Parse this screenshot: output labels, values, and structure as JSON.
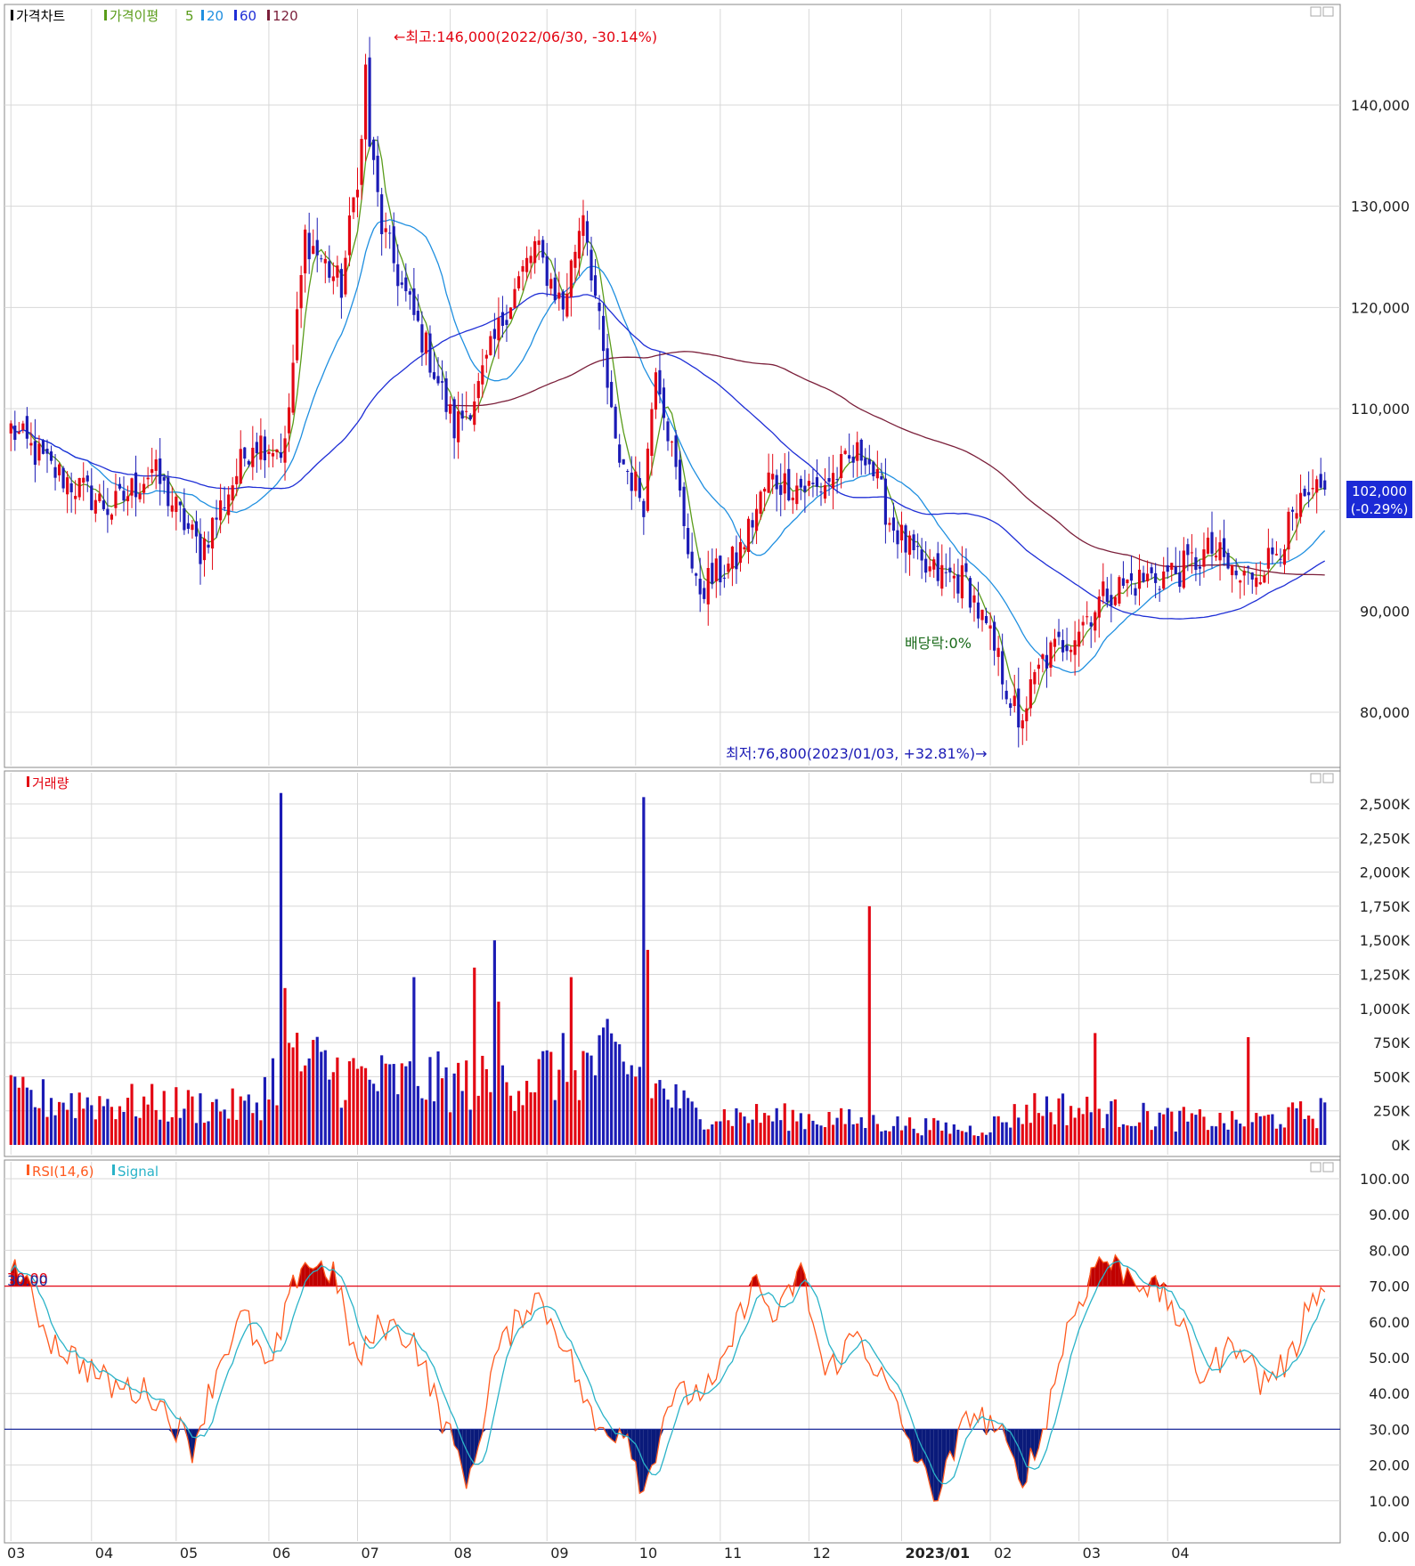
{
  "colors": {
    "up": "#e30613",
    "down": "#1b1bb5",
    "ma5": "#5a9c1a",
    "ma20": "#1f8fe0",
    "ma60": "#1f2fd6",
    "ma120": "#7b1f3a",
    "rsi": "#ff5a1f",
    "signal": "#2ab3c8",
    "grid": "#d8d8d8",
    "hline70": "#e30613",
    "hline30": "#1b2a9a",
    "lastbox": "#1b2ad6"
  },
  "price_panel": {
    "legend": [
      {
        "label": "가격차트",
        "color": "#000000"
      },
      {
        "label": "가격이평",
        "color": "#5a9c1a"
      },
      {
        "label": "5",
        "color": "#5a9c1a"
      },
      {
        "label": "20",
        "color": "#1f8fe0"
      },
      {
        "label": "60",
        "color": "#1f2fd6"
      },
      {
        "label": "120",
        "color": "#7b1f3a"
      }
    ],
    "y_ticks": [
      "140,000",
      "130,000",
      "120,000",
      "110,000",
      "90,000",
      "80,000"
    ],
    "high_note": "←최고:146,000(2022/06/30, -30.14%)",
    "low_note": "최저:76,800(2023/01/03, +32.81%)→",
    "dividend_note": "배당락:0%",
    "last_price": "102,000",
    "last_change": "(-0.29%)"
  },
  "volume_panel": {
    "legend": "거래량",
    "y_ticks": [
      "2,500K",
      "2,250K",
      "2,000K",
      "1,750K",
      "1,500K",
      "1,250K",
      "1,000K",
      "750K",
      "500K",
      "250K",
      "0K"
    ]
  },
  "rsi_panel": {
    "legend": [
      {
        "label": "RSI(14,6)",
        "color": "#ff5a1f"
      },
      {
        "label": "Signal",
        "color": "#2ab3c8"
      }
    ],
    "y_ticks": [
      "100.00",
      "90.00",
      "80.00",
      "70.00",
      "60.00",
      "50.00",
      "40.00",
      "30.00",
      "20.00",
      "10.00",
      "0.00"
    ],
    "level_high": "70.00",
    "level_low": "30.00"
  },
  "x_labels": [
    "03",
    "04",
    "05",
    "06",
    "07",
    "08",
    "09",
    "10",
    "11",
    "12",
    "2023/01",
    "02",
    "03",
    "04"
  ],
  "chart_data": [
    {
      "type": "candlestick",
      "xlabels": [
        "03",
        "04",
        "05",
        "06",
        "07",
        "08",
        "09",
        "10",
        "11",
        "12",
        "2023/01",
        "02",
        "03",
        "04"
      ],
      "ylim": [
        75000,
        150000
      ],
      "anchors": [
        [
          0,
          108000
        ],
        [
          10,
          104000
        ],
        [
          25,
          100000
        ],
        [
          35,
          104000
        ],
        [
          47,
          96000
        ],
        [
          60,
          107000
        ],
        [
          68,
          106000
        ],
        [
          73,
          127000
        ],
        [
          82,
          122000
        ],
        [
          88,
          139000
        ],
        [
          92,
          128000
        ],
        [
          97,
          122000
        ],
        [
          104,
          115000
        ],
        [
          110,
          108000
        ],
        [
          116,
          112000
        ],
        [
          123,
          120000
        ],
        [
          130,
          126000
        ],
        [
          137,
          120000
        ],
        [
          142,
          130000
        ],
        [
          150,
          106000
        ],
        [
          157,
          101000
        ],
        [
          160,
          115000
        ],
        [
          170,
          92000
        ],
        [
          180,
          95000
        ],
        [
          188,
          103000
        ],
        [
          200,
          102000
        ],
        [
          212,
          106000
        ],
        [
          218,
          99000
        ],
        [
          226,
          94000
        ],
        [
          237,
          93000
        ],
        [
          245,
          85000
        ],
        [
          250,
          79000
        ],
        [
          256,
          85000
        ],
        [
          264,
          88000
        ],
        [
          272,
          92000
        ],
        [
          280,
          93000
        ],
        [
          290,
          94000
        ],
        [
          298,
          96000
        ],
        [
          305,
          93000
        ],
        [
          312,
          95000
        ],
        [
          320,
          100000
        ],
        [
          326,
          102000
        ]
      ],
      "high": {
        "value": 146000,
        "date": "2022/06/30",
        "change": "-30.14%"
      },
      "low": {
        "value": 76800,
        "date": "2023/01/03",
        "change": "+32.81%"
      },
      "last": 102000,
      "moving_averages": [
        5,
        20,
        60,
        120
      ]
    },
    {
      "type": "bar",
      "name": "거래량",
      "ylim": [
        0,
        2600
      ],
      "unit": "K",
      "base_anchors": [
        [
          0,
          380
        ],
        [
          60,
          300
        ],
        [
          68,
          700
        ],
        [
          90,
          520
        ],
        [
          120,
          500
        ],
        [
          150,
          700
        ],
        [
          170,
          250
        ],
        [
          200,
          220
        ],
        [
          240,
          120
        ],
        [
          255,
          320
        ],
        [
          285,
          220
        ],
        [
          305,
          180
        ],
        [
          326,
          270
        ]
      ],
      "spikes": [
        [
          67,
          2580
        ],
        [
          68,
          1150
        ],
        [
          115,
          1300
        ],
        [
          120,
          1500
        ],
        [
          157,
          2550
        ],
        [
          158,
          1430
        ],
        [
          213,
          1750
        ],
        [
          121,
          1050
        ],
        [
          100,
          1230
        ],
        [
          139,
          1230
        ],
        [
          269,
          820
        ],
        [
          307,
          790
        ]
      ]
    },
    {
      "type": "line",
      "series": [
        {
          "name": "RSI(14,6)"
        },
        {
          "name": "Signal"
        }
      ],
      "ylim": [
        0,
        100
      ],
      "levels": [
        70,
        30
      ],
      "anchors": [
        [
          0,
          78
        ],
        [
          10,
          55
        ],
        [
          25,
          42
        ],
        [
          35,
          40
        ],
        [
          45,
          25
        ],
        [
          52,
          50
        ],
        [
          58,
          62
        ],
        [
          64,
          45
        ],
        [
          72,
          77
        ],
        [
          80,
          74
        ],
        [
          86,
          48
        ],
        [
          92,
          60
        ],
        [
          100,
          55
        ],
        [
          108,
          30
        ],
        [
          114,
          15
        ],
        [
          120,
          50
        ],
        [
          130,
          68
        ],
        [
          137,
          55
        ],
        [
          145,
          30
        ],
        [
          153,
          30
        ],
        [
          157,
          12
        ],
        [
          163,
          38
        ],
        [
          175,
          42
        ],
        [
          184,
          72
        ],
        [
          190,
          60
        ],
        [
          196,
          75
        ],
        [
          202,
          45
        ],
        [
          210,
          57
        ],
        [
          218,
          40
        ],
        [
          226,
          18
        ],
        [
          230,
          12
        ],
        [
          238,
          35
        ],
        [
          245,
          30
        ],
        [
          250,
          16
        ],
        [
          255,
          25
        ],
        [
          262,
          58
        ],
        [
          270,
          78
        ],
        [
          280,
          72
        ],
        [
          288,
          65
        ],
        [
          295,
          45
        ],
        [
          305,
          55
        ],
        [
          310,
          43
        ],
        [
          318,
          50
        ],
        [
          323,
          70
        ],
        [
          326,
          67
        ]
      ]
    }
  ]
}
